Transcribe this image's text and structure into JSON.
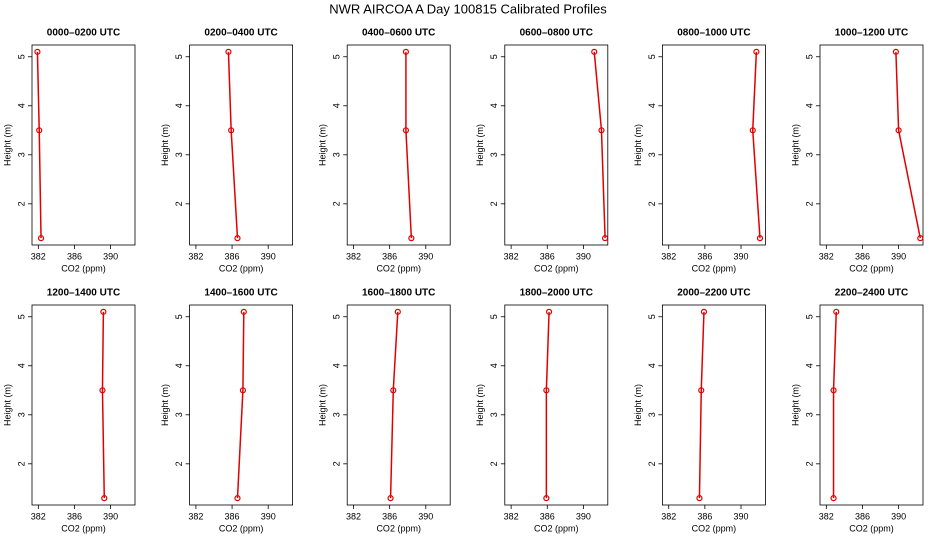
{
  "title": "NWR AIRCOA A  Day 100815  Calibrated Profiles",
  "chart_data": [
    {
      "type": "line",
      "title": "0000–0200 UTC",
      "x_label": "CO2 (ppm)",
      "y_label": "Height (m)",
      "x": [
        381.9,
        382.1,
        382.3
      ],
      "values": [
        5.1,
        3.5,
        1.3
      ],
      "color": "#e00000",
      "xlim": [
        381.3,
        392.7
      ],
      "ylim": [
        1.16,
        5.24
      ],
      "xticks": [
        382,
        386,
        390
      ],
      "yticks": [
        2,
        3,
        4,
        5
      ]
    },
    {
      "type": "line",
      "title": "0200–0400 UTC",
      "x_label": "CO2 (ppm)",
      "y_label": "Height (m)",
      "x": [
        385.6,
        385.9,
        386.6
      ],
      "values": [
        5.1,
        3.5,
        1.3
      ],
      "color": "#e00000",
      "xlim": [
        381.3,
        392.7
      ],
      "ylim": [
        1.16,
        5.24
      ],
      "xticks": [
        382,
        386,
        390
      ],
      "yticks": [
        2,
        3,
        4,
        5
      ]
    },
    {
      "type": "line",
      "title": "0400–0600 UTC",
      "x_label": "CO2 (ppm)",
      "y_label": "Height (m)",
      "x": [
        387.8,
        387.8,
        388.4
      ],
      "values": [
        5.1,
        3.5,
        1.3
      ],
      "color": "#e00000",
      "xlim": [
        381.3,
        392.7
      ],
      "ylim": [
        1.16,
        5.24
      ],
      "xticks": [
        382,
        386,
        390
      ],
      "yticks": [
        2,
        3,
        4,
        5
      ]
    },
    {
      "type": "line",
      "title": "0600–0800 UTC",
      "x_label": "CO2 (ppm)",
      "y_label": "Height (m)",
      "x": [
        391.2,
        392.0,
        392.4
      ],
      "values": [
        5.1,
        3.5,
        1.3
      ],
      "color": "#e00000",
      "xlim": [
        381.3,
        392.7
      ],
      "ylim": [
        1.16,
        5.24
      ],
      "xticks": [
        382,
        386,
        390
      ],
      "yticks": [
        2,
        3,
        4,
        5
      ]
    },
    {
      "type": "line",
      "title": "0800–1000 UTC",
      "x_label": "CO2 (ppm)",
      "y_label": "Height (m)",
      "x": [
        391.7,
        391.3,
        392.1
      ],
      "values": [
        5.1,
        3.5,
        1.3
      ],
      "color": "#e00000",
      "xlim": [
        381.3,
        392.7
      ],
      "ylim": [
        1.16,
        5.24
      ],
      "xticks": [
        382,
        386,
        390
      ],
      "yticks": [
        2,
        3,
        4,
        5
      ]
    },
    {
      "type": "line",
      "title": "1000–1200 UTC",
      "x_label": "CO2 (ppm)",
      "y_label": "Height (m)",
      "x": [
        389.7,
        390.0,
        392.4
      ],
      "values": [
        5.1,
        3.5,
        1.3
      ],
      "color": "#e00000",
      "xlim": [
        381.3,
        392.7
      ],
      "ylim": [
        1.16,
        5.24
      ],
      "xticks": [
        382,
        386,
        390
      ],
      "yticks": [
        2,
        3,
        4,
        5
      ]
    },
    {
      "type": "line",
      "title": "1200–1400 UTC",
      "x_label": "CO2 (ppm)",
      "y_label": "Height (m)",
      "x": [
        389.2,
        389.1,
        389.3
      ],
      "values": [
        5.1,
        3.5,
        1.3
      ],
      "color": "#e00000",
      "xlim": [
        381.3,
        392.7
      ],
      "ylim": [
        1.16,
        5.24
      ],
      "xticks": [
        382,
        386,
        390
      ],
      "yticks": [
        2,
        3,
        4,
        5
      ]
    },
    {
      "type": "line",
      "title": "1400–1600 UTC",
      "x_label": "CO2 (ppm)",
      "y_label": "Height (m)",
      "x": [
        387.3,
        387.2,
        386.6
      ],
      "values": [
        5.1,
        3.5,
        1.3
      ],
      "color": "#e00000",
      "xlim": [
        381.3,
        392.7
      ],
      "ylim": [
        1.16,
        5.24
      ],
      "xticks": [
        382,
        386,
        390
      ],
      "yticks": [
        2,
        3,
        4,
        5
      ]
    },
    {
      "type": "line",
      "title": "1600–1800 UTC",
      "x_label": "CO2 (ppm)",
      "y_label": "Height (m)",
      "x": [
        386.9,
        386.4,
        386.1
      ],
      "values": [
        5.1,
        3.5,
        1.3
      ],
      "color": "#e00000",
      "xlim": [
        381.3,
        392.7
      ],
      "ylim": [
        1.16,
        5.24
      ],
      "xticks": [
        382,
        386,
        390
      ],
      "yticks": [
        2,
        3,
        4,
        5
      ]
    },
    {
      "type": "line",
      "title": "1800–2000 UTC",
      "x_label": "CO2 (ppm)",
      "y_label": "Height (m)",
      "x": [
        386.2,
        385.9,
        385.9
      ],
      "values": [
        5.1,
        3.5,
        1.3
      ],
      "color": "#e00000",
      "xlim": [
        381.3,
        392.7
      ],
      "ylim": [
        1.16,
        5.24
      ],
      "xticks": [
        382,
        386,
        390
      ],
      "yticks": [
        2,
        3,
        4,
        5
      ]
    },
    {
      "type": "line",
      "title": "2000–2200 UTC",
      "x_label": "CO2 (ppm)",
      "y_label": "Height (m)",
      "x": [
        385.9,
        385.6,
        385.4
      ],
      "values": [
        5.1,
        3.5,
        1.3
      ],
      "color": "#e00000",
      "xlim": [
        381.3,
        392.7
      ],
      "ylim": [
        1.16,
        5.24
      ],
      "xticks": [
        382,
        386,
        390
      ],
      "yticks": [
        2,
        3,
        4,
        5
      ]
    },
    {
      "type": "line",
      "title": "2200–2400 UTC",
      "x_label": "CO2 (ppm)",
      "y_label": "Height (m)",
      "x": [
        383.1,
        382.8,
        382.8
      ],
      "values": [
        5.1,
        3.5,
        1.3
      ],
      "color": "#e00000",
      "xlim": [
        381.3,
        392.7
      ],
      "ylim": [
        1.16,
        5.24
      ],
      "xticks": [
        382,
        386,
        390
      ],
      "yticks": [
        2,
        3,
        4,
        5
      ]
    }
  ]
}
